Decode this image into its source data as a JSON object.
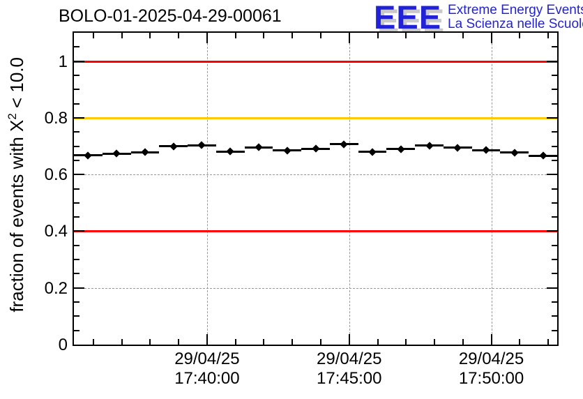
{
  "chart_data": {
    "type": "scatter",
    "title": "BOLO-01-2025-04-29-00061",
    "ylabel_pre": "fraction of events with X",
    "ylabel_sup": "2",
    "ylabel_post": " < 10.0",
    "ylim": [
      0,
      1.1
    ],
    "x_range_s": [
      0,
      1020
    ],
    "bin_halfwidth_s": 30,
    "grid": "dashed-at-major-ticks",
    "y_ticks": [
      {
        "v": 0.0,
        "label": "0"
      },
      {
        "v": 0.2,
        "label": "0.2"
      },
      {
        "v": 0.4,
        "label": "0.4"
      },
      {
        "v": 0.6,
        "label": "0.6"
      },
      {
        "v": 0.8,
        "label": "0.8"
      },
      {
        "v": 1.0,
        "label": "1"
      }
    ],
    "y_minor_step": 0.05,
    "x_ticks": [
      {
        "t_s": 281,
        "date": "29/04/25",
        "time": "17:40:00"
      },
      {
        "t_s": 581,
        "date": "29/04/25",
        "time": "17:45:00"
      },
      {
        "t_s": 881,
        "date": "29/04/25",
        "time": "17:50:00"
      }
    ],
    "x_minor_start_s": 41,
    "x_minor_step_s": 60,
    "points": [
      {
        "t_s": 30,
        "y": 0.667
      },
      {
        "t_s": 90,
        "y": 0.674
      },
      {
        "t_s": 150,
        "y": 0.678
      },
      {
        "t_s": 210,
        "y": 0.699
      },
      {
        "t_s": 270,
        "y": 0.703
      },
      {
        "t_s": 330,
        "y": 0.681
      },
      {
        "t_s": 390,
        "y": 0.696
      },
      {
        "t_s": 450,
        "y": 0.685
      },
      {
        "t_s": 510,
        "y": 0.691
      },
      {
        "t_s": 570,
        "y": 0.707
      },
      {
        "t_s": 630,
        "y": 0.68
      },
      {
        "t_s": 690,
        "y": 0.69
      },
      {
        "t_s": 750,
        "y": 0.702
      },
      {
        "t_s": 810,
        "y": 0.695
      },
      {
        "t_s": 870,
        "y": 0.686
      },
      {
        "t_s": 930,
        "y": 0.677
      },
      {
        "t_s": 990,
        "y": 0.666
      }
    ],
    "ref_lines": [
      {
        "y": 1.0,
        "color": "#ff0000"
      },
      {
        "y": 0.8,
        "color": "#ffc800"
      },
      {
        "y": 0.4,
        "color": "#ff0000"
      }
    ],
    "colors": {
      "marker": "#000000",
      "grid": "#999999",
      "axis": "#000000"
    }
  },
  "logo": {
    "letters": "EEE",
    "line1": "Extreme Energy Events",
    "line2": "La Scienza nelle Scuole",
    "text_color": "#2424cc",
    "letters_color": "#2121d6",
    "shadow_color": "#c8c8c8"
  }
}
